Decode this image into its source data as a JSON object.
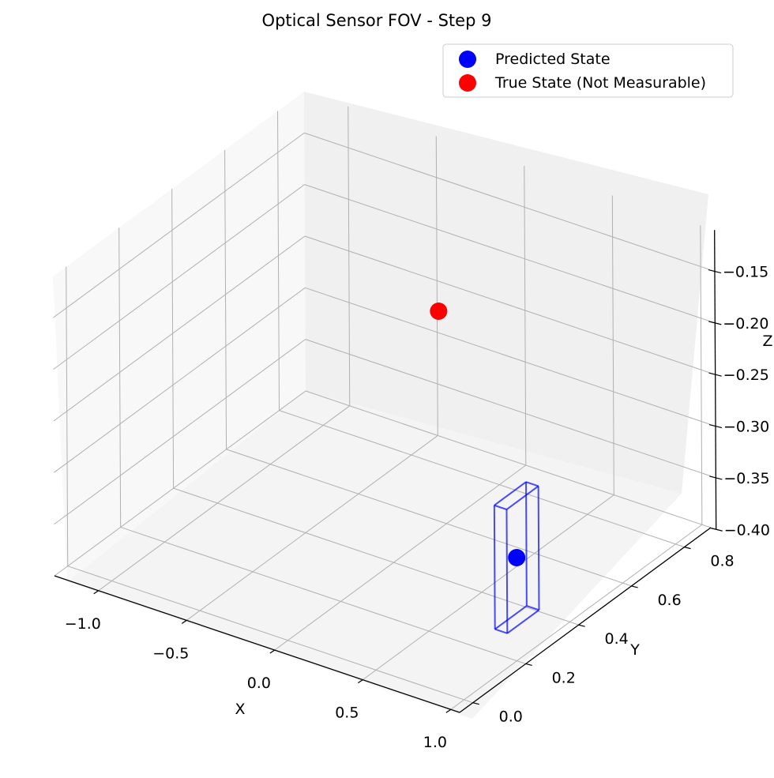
{
  "chart_data": {
    "type": "scatter",
    "projection": "3d",
    "title": "Optical Sensor FOV - Step 9",
    "xlabel": "X",
    "ylabel": "Y",
    "zlabel": "Z",
    "grid": true,
    "legend_position": "top-right",
    "xlim": [
      -1.25,
      1.05
    ],
    "ylim": [
      -0.05,
      0.9
    ],
    "zlim": [
      -0.4,
      -0.11
    ],
    "x_ticks": [
      -1.0,
      -0.5,
      0.0,
      0.5,
      1.0
    ],
    "y_ticks": [
      0.0,
      0.2,
      0.4,
      0.6,
      0.8
    ],
    "z_ticks": [
      -0.15,
      -0.2,
      -0.25,
      -0.3,
      -0.35,
      -0.4
    ],
    "x_tick_labels": [
      "−1.0",
      "−0.5",
      "0.0",
      "0.5",
      "1.0"
    ],
    "y_tick_labels": [
      "0.0",
      "0.2",
      "0.4",
      "0.6",
      "0.8"
    ],
    "z_tick_labels": [
      "−0.15",
      "−0.20",
      "−0.25",
      "−0.30",
      "−0.35",
      "−0.40"
    ],
    "series": [
      {
        "name": "Predicted State",
        "color": "#0000ff",
        "marker": "circle",
        "points": [
          {
            "x": 0.76,
            "y": 0.36,
            "z": -0.344
          }
        ]
      },
      {
        "name": "True State (Not Measurable)",
        "color": "#ff0000",
        "marker": "circle",
        "points": [
          {
            "x": -0.25,
            "y": 0.74,
            "z": -0.235
          }
        ]
      }
    ],
    "fov_box": {
      "color": "#0000ff",
      "center": {
        "x": 0.76,
        "y": 0.36,
        "z": -0.344
      },
      "half_size": {
        "x": 0.035,
        "y": 0.06,
        "z": 0.06
      }
    }
  }
}
